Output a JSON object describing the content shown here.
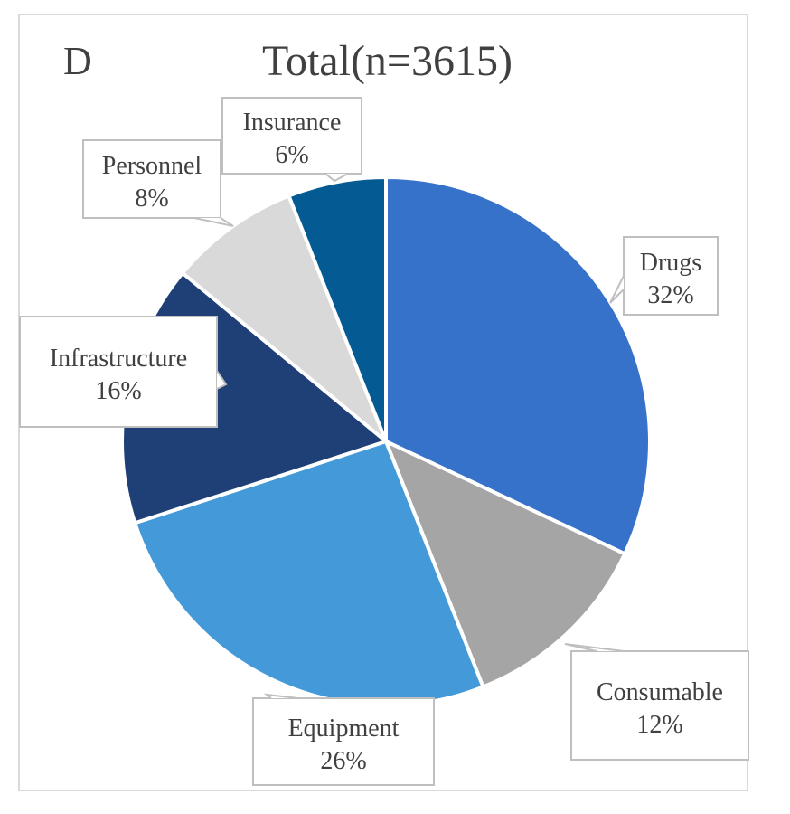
{
  "panel_label": "D",
  "chart_data": {
    "type": "pie",
    "title": "Total(n=3615)",
    "slices": [
      {
        "label": "Drugs",
        "value": 32,
        "pct_label": "32%",
        "color": "#3671ca"
      },
      {
        "label": "Consumable",
        "value": 12,
        "pct_label": "12%",
        "color": "#a5a5a5"
      },
      {
        "label": "Equipment",
        "value": 26,
        "pct_label": "26%",
        "color": "#4499d9"
      },
      {
        "label": "Infrastructure",
        "value": 16,
        "pct_label": "16%",
        "color": "#1f3f77"
      },
      {
        "label": "Personnel",
        "value": 8,
        "pct_label": "8%",
        "color": "#d9d9d9"
      },
      {
        "label": "Insurance",
        "value": 6,
        "pct_label": "6%",
        "color": "#045a93"
      }
    ]
  }
}
